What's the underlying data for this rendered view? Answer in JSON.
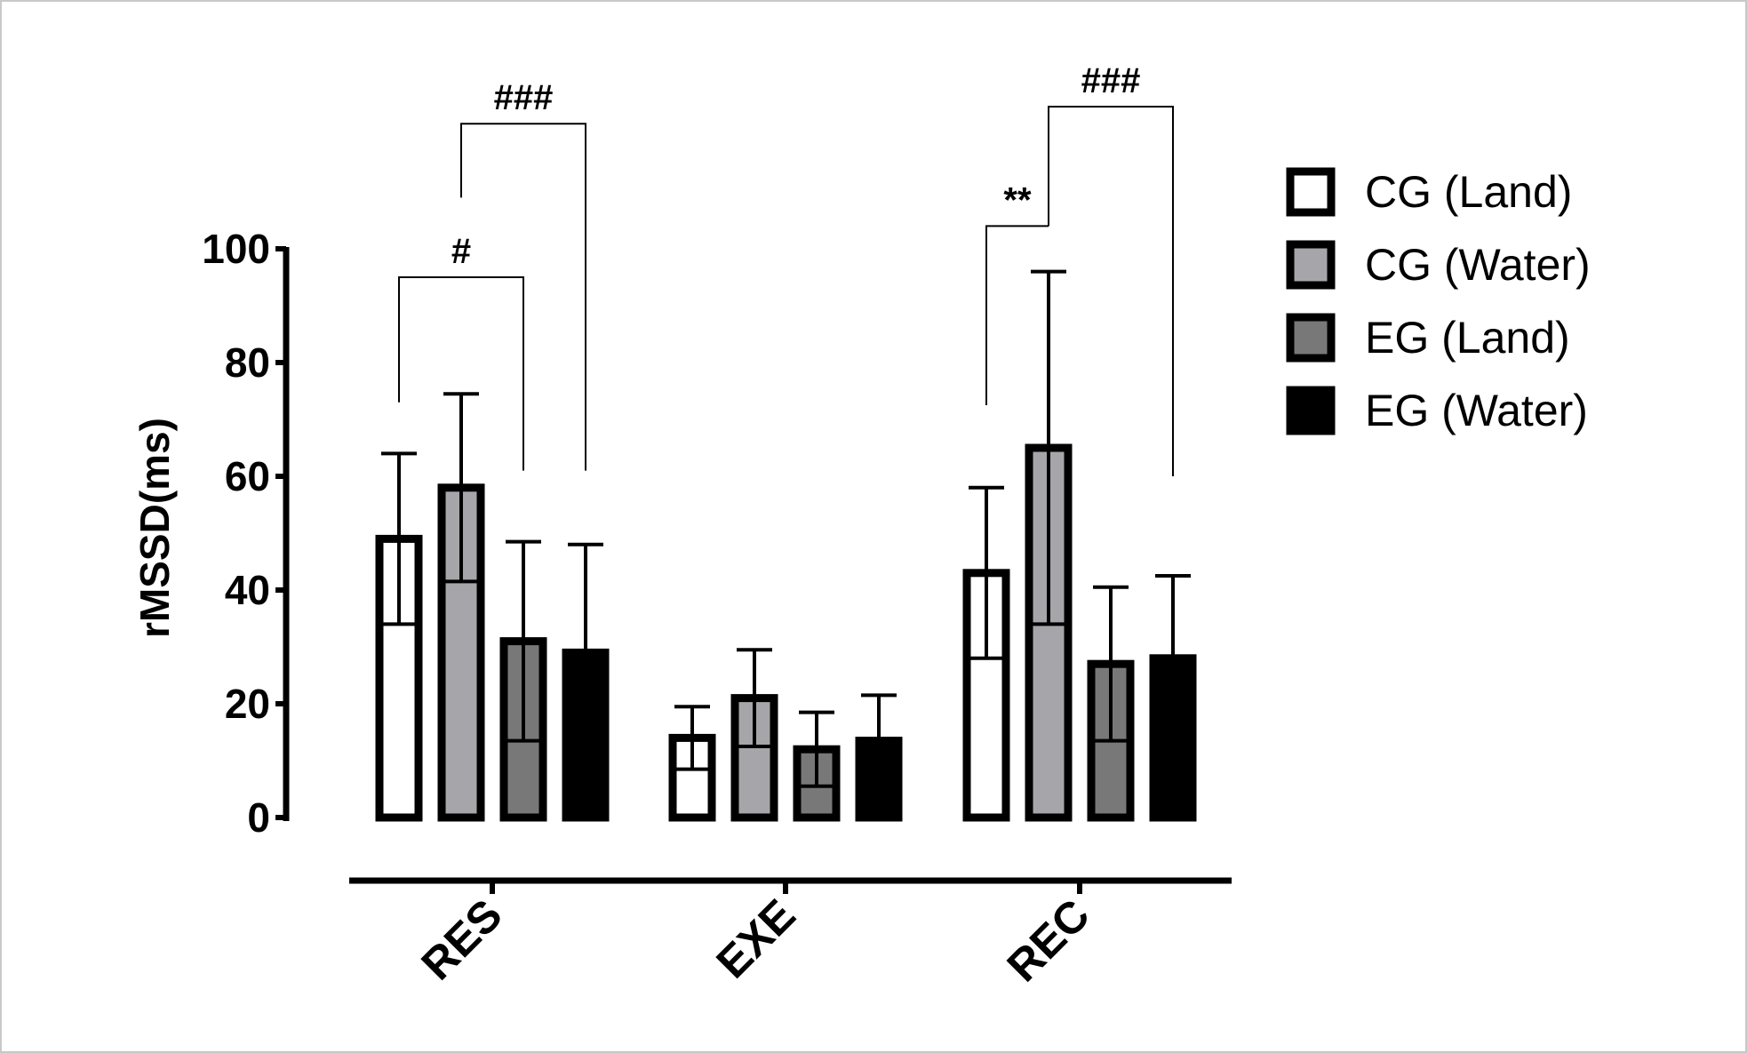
{
  "chart_data": {
    "type": "bar",
    "title": "",
    "xlabel": "",
    "ylabel": "rMSSD(ms)",
    "ylim": [
      0,
      100
    ],
    "yticks": [
      0,
      20,
      40,
      60,
      80,
      100
    ],
    "categories": [
      "RES",
      "EXE",
      "REC"
    ],
    "series": [
      {
        "name": "CG (Land)",
        "color": "#ffffff",
        "values": [
          49,
          14,
          43
        ],
        "errors": [
          15,
          5.5,
          15
        ]
      },
      {
        "name": "CG (Water)",
        "color": "#a6a6aa",
        "values": [
          58,
          21,
          65
        ],
        "errors": [
          16.5,
          8.5,
          31
        ]
      },
      {
        "name": "EG (Land)",
        "color": "#787878",
        "values": [
          31,
          12,
          27
        ],
        "errors": [
          17.5,
          6.5,
          13.5
        ]
      },
      {
        "name": "EG (Water)",
        "color": "#000000",
        "values": [
          29,
          13.5,
          28
        ],
        "errors": [
          19,
          8,
          14.5
        ]
      }
    ],
    "legend_position": "right",
    "grid": false,
    "annotations": [
      {
        "text": "#",
        "category": "RES",
        "from": 0,
        "to": 2,
        "left_start": 73,
        "right_start": 61,
        "bar_y": 95
      },
      {
        "text": "###",
        "category": "RES",
        "from": 1,
        "to": 3,
        "left_start": 109,
        "right_start": 61,
        "bar_y": 122
      },
      {
        "text": "**",
        "category": "REC",
        "from": 0,
        "to": 1,
        "left_start": 72.5,
        "right_start": 104,
        "bar_y": 104
      },
      {
        "text": "###",
        "category": "REC",
        "from": 1,
        "to": 3,
        "left_start": 104,
        "right_start": 60,
        "bar_y": 125
      }
    ]
  }
}
